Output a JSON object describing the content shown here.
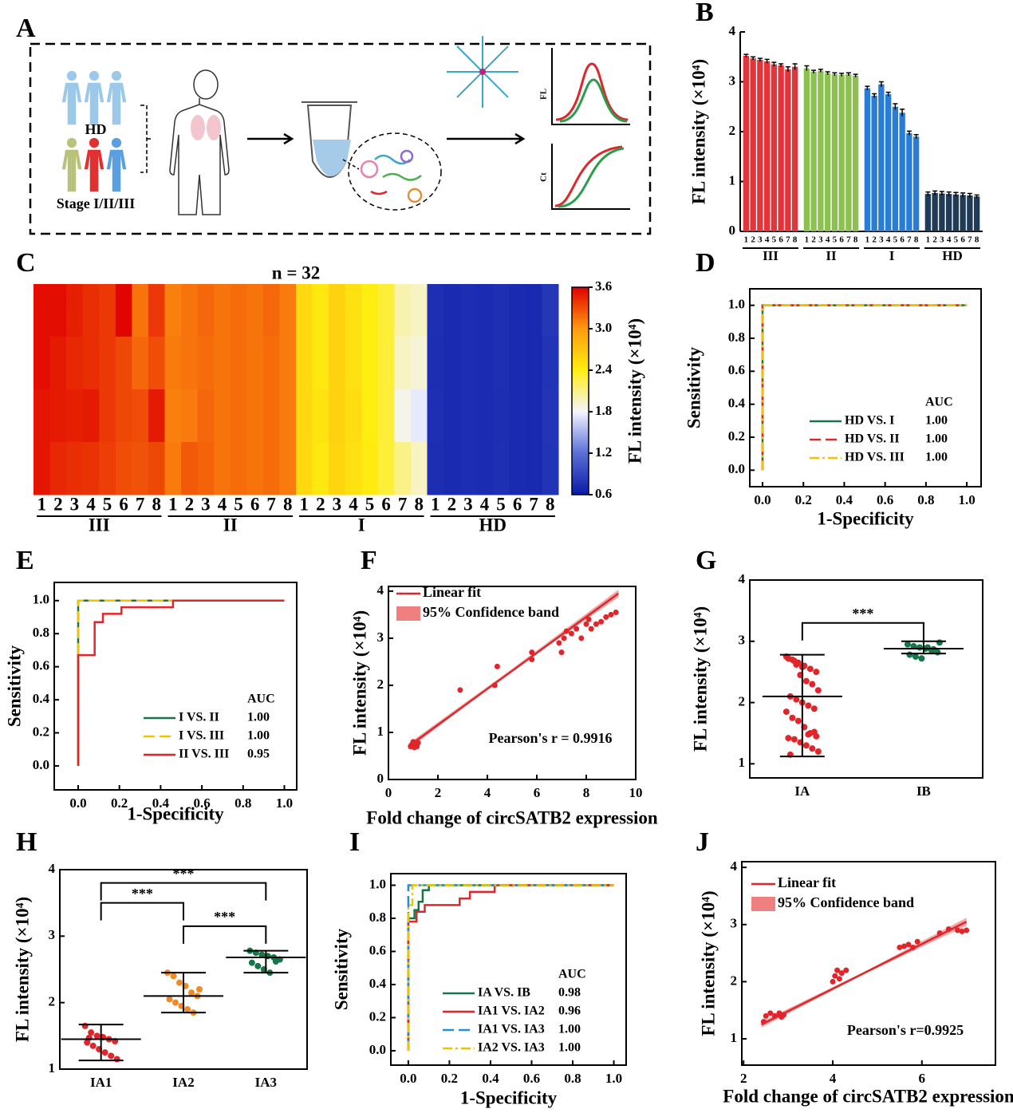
{
  "diagram": {
    "label": "A",
    "healthy": "HD",
    "patients": "Stage I/II/III",
    "fl_axis": "FL",
    "ct_axis": "Ct"
  },
  "chart_data": [
    {
      "label": "B",
      "type": "bar",
      "ylabel": "FL intensity (×10⁴)",
      "ylim": [
        0,
        4
      ],
      "yticks": [
        0,
        1,
        2,
        3,
        4
      ],
      "groups": [
        {
          "name": "III",
          "color": "#e3343a",
          "categories": [
            "1",
            "2",
            "3",
            "4",
            "5",
            "6",
            "7",
            "8"
          ],
          "values": [
            3.52,
            3.47,
            3.44,
            3.41,
            3.35,
            3.33,
            3.25,
            3.3
          ],
          "errors": [
            0.03,
            0.03,
            0.03,
            0.04,
            0.04,
            0.03,
            0.05,
            0.06
          ]
        },
        {
          "name": "II",
          "color": "#8cc152",
          "categories": [
            "1",
            "2",
            "3",
            "4",
            "5",
            "6",
            "7",
            "8"
          ],
          "values": [
            3.27,
            3.2,
            3.22,
            3.17,
            3.15,
            3.14,
            3.15,
            3.12
          ],
          "errors": [
            0.05,
            0.03,
            0.03,
            0.03,
            0.03,
            0.03,
            0.03,
            0.03
          ]
        },
        {
          "name": "I",
          "color": "#2a7dd4",
          "categories": [
            "1",
            "2",
            "3",
            "4",
            "5",
            "6",
            "7",
            "8"
          ],
          "values": [
            2.87,
            2.72,
            2.95,
            2.75,
            2.5,
            2.38,
            1.97,
            1.9
          ],
          "errors": [
            0.04,
            0.04,
            0.05,
            0.04,
            0.06,
            0.07,
            0.04,
            0.04
          ]
        },
        {
          "name": "HD",
          "color": "#1f3b57",
          "categories": [
            "1",
            "2",
            "3",
            "4",
            "5",
            "6",
            "7",
            "8"
          ],
          "values": [
            0.75,
            0.77,
            0.76,
            0.75,
            0.74,
            0.73,
            0.72,
            0.7
          ],
          "errors": [
            0.04,
            0.04,
            0.04,
            0.04,
            0.04,
            0.04,
            0.04,
            0.03
          ]
        }
      ]
    },
    {
      "label": "C",
      "type": "heatmap",
      "title": "n = 32",
      "colorbar_label": "FL intensity (×10⁴)",
      "clim": [
        0.6,
        3.6
      ],
      "cticks": [
        0.6,
        1.2,
        1.8,
        2.4,
        {
          "value": 3,
          "label": "3.0"
        },
        3.6
      ],
      "colors": [
        "#0a1aa8",
        "#5a6fd6",
        "#f4f4ff",
        "#ffee10",
        "#ff9a10",
        "#e00000"
      ],
      "groups": [
        {
          "name": "III",
          "categories": [
            "1",
            "2",
            "3",
            "4",
            "5",
            "6",
            "7",
            "8"
          ]
        },
        {
          "name": "II",
          "categories": [
            "1",
            "2",
            "3",
            "4",
            "5",
            "6",
            "7",
            "8"
          ]
        },
        {
          "name": "I",
          "categories": [
            "1",
            "2",
            "3",
            "4",
            "5",
            "6",
            "7",
            "8"
          ]
        },
        {
          "name": "HD",
          "categories": [
            "1",
            "2",
            "3",
            "4",
            "5",
            "6",
            "7",
            "8"
          ]
        }
      ],
      "z": [
        [
          3.55,
          3.55,
          3.48,
          3.42,
          3.38,
          3.58,
          3.15,
          3.38,
          3.1,
          3.15,
          3.2,
          3.15,
          3.18,
          3.15,
          3.2,
          3.12,
          2.55,
          2.45,
          2.6,
          2.5,
          2.4,
          2.3,
          2.0,
          1.95,
          0.75,
          0.72,
          0.74,
          0.73,
          0.75,
          0.72,
          0.71,
          0.8
        ],
        [
          3.55,
          3.5,
          3.45,
          3.42,
          3.38,
          3.32,
          3.2,
          3.3,
          3.12,
          3.15,
          3.18,
          3.15,
          3.18,
          3.15,
          3.18,
          3.12,
          2.55,
          2.45,
          2.6,
          2.5,
          2.4,
          2.3,
          1.95,
          1.9,
          0.74,
          0.72,
          0.74,
          0.73,
          0.75,
          0.72,
          0.71,
          0.78
        ],
        [
          3.52,
          3.5,
          3.48,
          3.5,
          3.38,
          3.32,
          3.3,
          3.5,
          3.1,
          3.12,
          3.2,
          3.15,
          3.18,
          3.15,
          3.18,
          3.12,
          2.55,
          2.48,
          2.6,
          2.52,
          2.4,
          2.3,
          1.85,
          1.75,
          0.75,
          0.72,
          0.74,
          0.73,
          0.74,
          0.72,
          0.71,
          0.79
        ],
        [
          3.52,
          3.45,
          3.42,
          3.4,
          3.36,
          3.3,
          3.28,
          3.32,
          3.12,
          3.25,
          3.22,
          3.15,
          3.18,
          3.15,
          3.18,
          3.12,
          2.55,
          2.45,
          2.58,
          2.5,
          2.42,
          2.3,
          2.1,
          1.95,
          0.74,
          0.72,
          0.74,
          0.73,
          0.75,
          0.72,
          0.71,
          0.78
        ]
      ]
    },
    {
      "label": "D",
      "type": "line",
      "xlabel": "1-Specificity",
      "ylabel": "Sensitivity",
      "legend_title": "AUC",
      "xlim": [
        -0.0625,
        1.07
      ],
      "ylim": [
        -0.1,
        1.1
      ],
      "xticks": [
        {
          "value": 0,
          "label": "0.0"
        },
        0.2,
        0.4,
        0.6,
        0.8,
        {
          "value": 1,
          "label": "1.0"
        }
      ],
      "yticks": [
        {
          "value": 0,
          "label": "0.0"
        },
        0.2,
        0.4,
        0.6,
        0.8,
        {
          "value": 1,
          "label": "1.0"
        }
      ],
      "series": [
        {
          "name": "HD VS. I",
          "color": "#17754a",
          "linestyle": "solid",
          "x": [
            0,
            0,
            1
          ],
          "values": [
            0,
            1,
            1
          ],
          "auc": "1.00"
        },
        {
          "name": "HD VS. II",
          "color": "#e0262b",
          "linestyle": "dashed",
          "x": [
            0,
            0,
            1
          ],
          "values": [
            0,
            1,
            1
          ],
          "auc": "1.00"
        },
        {
          "name": "HD VS. III",
          "color": "#f2c200",
          "linestyle": "dashdot",
          "x": [
            0,
            0,
            1
          ],
          "values": [
            0,
            1,
            1
          ],
          "auc": "1.00"
        }
      ]
    },
    {
      "label": "E",
      "type": "line",
      "xlabel": "1-Specificity",
      "ylabel": "Sensitivity",
      "legend_title": "AUC",
      "xlim": [
        -0.116,
        1.06
      ],
      "ylim": [
        -0.145,
        1.11
      ],
      "xticks": [
        {
          "value": 0,
          "label": "0.0"
        },
        0.2,
        0.4,
        0.6,
        0.8,
        {
          "value": 1,
          "label": "1.0"
        }
      ],
      "yticks": [
        {
          "value": 0,
          "label": "0.0"
        },
        0.2,
        0.4,
        0.6,
        0.8,
        {
          "value": 1,
          "label": "1.0"
        }
      ],
      "series": [
        {
          "name": "I VS. II",
          "color": "#17754a",
          "linestyle": "solid",
          "x": [
            0,
            0,
            0,
            1
          ],
          "values": [
            0,
            0.67,
            1,
            1
          ],
          "auc": "1.00"
        },
        {
          "name": "I VS. III",
          "color": "#f2c200",
          "linestyle": "dashed",
          "x": [
            0,
            0,
            0,
            1
          ],
          "values": [
            0,
            0.67,
            1,
            1
          ],
          "auc": "1.00"
        },
        {
          "name": "II VS. III",
          "color": "#e0262b",
          "linestyle": "solid",
          "x": [
            0,
            0,
            0.08,
            0.08,
            0.12,
            0.12,
            0.21,
            0.21,
            0.46,
            0.46,
            1
          ],
          "values": [
            0,
            0.67,
            0.67,
            0.87,
            0.87,
            0.92,
            0.92,
            0.96,
            0.96,
            1,
            1
          ],
          "auc": "0.95"
        }
      ]
    },
    {
      "label": "F",
      "type": "scatter",
      "xlabel": "Fold change of circSATB2 expression",
      "ylabel": "FL intensity (×10⁴)",
      "annotation": "Pearson's r = 0.9916",
      "color": "#e0262b",
      "xlim": [
        0,
        10
      ],
      "ylim": [
        0,
        4.1
      ],
      "xticks": [
        0,
        2,
        4,
        6,
        8,
        10
      ],
      "yticks": [
        0,
        1,
        2,
        3,
        4
      ],
      "x": [
        0.9,
        1.0,
        1.1,
        1.05,
        0.95,
        1.15,
        1.2,
        1.0,
        2.9,
        4.3,
        4.4,
        5.8,
        5.8,
        6.9,
        7.0,
        7.1,
        7.2,
        7.4,
        7.6,
        7.8,
        8.0,
        8.1,
        8.2,
        8.4,
        8.6,
        8.8,
        9.0,
        9.2
      ],
      "values": [
        0.7,
        0.72,
        0.75,
        0.68,
        0.74,
        0.7,
        0.78,
        0.8,
        1.9,
        2.0,
        2.4,
        2.55,
        2.7,
        2.9,
        2.7,
        3.0,
        3.15,
        3.1,
        3.2,
        3.0,
        3.3,
        3.4,
        3.2,
        3.3,
        3.35,
        3.45,
        3.5,
        3.55
      ],
      "fit": {
        "name": "Linear fit",
        "x": [
          0.8,
          9.3
        ],
        "values": [
          0.7,
          3.95
        ]
      },
      "band": {
        "name": "95% Confidence band",
        "color": "#f08080",
        "x": [
          0.8,
          5,
          9.3
        ],
        "lower": [
          0.64,
          2.31,
          3.87
        ],
        "upper": [
          0.76,
          2.35,
          4.03
        ]
      }
    },
    {
      "label": "G",
      "type": "strip",
      "ylabel": "FL intensity (×10⁴)",
      "ylim": [
        0.77,
        4
      ],
      "yticks": [
        1,
        2,
        3,
        4
      ],
      "categories": [
        "IA",
        "IB"
      ],
      "colors": [
        "#e0262b",
        "#17754a"
      ],
      "points": [
        [
          2.75,
          2.7,
          2.65,
          2.6,
          2.55,
          2.5,
          2.72,
          2.68,
          2.45,
          2.35,
          2.3,
          2.2,
          2.1,
          2.05,
          2.0,
          1.95,
          1.9,
          1.85,
          1.75,
          1.7,
          1.6,
          1.5,
          1.45,
          1.42,
          1.4,
          1.35,
          1.3,
          1.25,
          1.2,
          1.15,
          2.62,
          2.58,
          1.48,
          1.52
        ],
        [
          2.95,
          2.92,
          2.9,
          2.88,
          2.85,
          2.82,
          2.78,
          2.75,
          2.72,
          2.9,
          2.87,
          2.98
        ]
      ],
      "mean": [
        2.1,
        2.88
      ],
      "whisker_low": [
        1.12,
        2.8
      ],
      "whisker_high": [
        2.78,
        3.0
      ],
      "comparisons": [
        {
          "groups": [
            "IA",
            "IB"
          ],
          "label": "***"
        }
      ]
    },
    {
      "label": "H",
      "type": "strip",
      "ylabel": "FL intensity (×10⁴)",
      "ylim": [
        1,
        4
      ],
      "yticks": [
        1,
        2,
        3,
        4
      ],
      "categories": [
        "IA1",
        "IA2",
        "IA3"
      ],
      "colors": [
        "#e0262b",
        "#f08a24",
        "#17754a"
      ],
      "points": [
        [
          1.65,
          1.55,
          1.5,
          1.48,
          1.45,
          1.42,
          1.4,
          1.35,
          1.3,
          1.25,
          1.2,
          1.15,
          1.47
        ],
        [
          2.45,
          2.4,
          2.3,
          2.25,
          2.15,
          2.1,
          2.05,
          2.0,
          1.95,
          1.9,
          1.85,
          2.2
        ],
        [
          2.78,
          2.75,
          2.72,
          2.7,
          2.68,
          2.65,
          2.6,
          2.55,
          2.5,
          2.45,
          2.62
        ]
      ],
      "mean": [
        1.45,
        2.1,
        2.68
      ],
      "whisker_low": [
        1.13,
        1.85,
        2.45
      ],
      "whisker_high": [
        1.67,
        2.45,
        2.78
      ],
      "comparisons": [
        {
          "groups": [
            "IA1",
            "IA2"
          ],
          "label": "***"
        },
        {
          "groups": [
            "IA2",
            "IA3"
          ],
          "label": "***"
        },
        {
          "groups": [
            "IA1",
            "IA3"
          ],
          "label": "***"
        }
      ]
    },
    {
      "label": "I",
      "type": "line",
      "xlabel": "1-Specificity",
      "ylabel": "Sensitivity",
      "legend_title": "AUC",
      "xlim": [
        -0.085,
        1.06
      ],
      "ylim": [
        -0.087,
        1.07
      ],
      "xticks": [
        {
          "value": 0,
          "label": "0.0"
        },
        0.2,
        0.4,
        0.6,
        0.8,
        {
          "value": 1,
          "label": "1.0"
        }
      ],
      "yticks": [
        {
          "value": 0,
          "label": "0.0"
        },
        0.2,
        0.4,
        0.6,
        0.8,
        {
          "value": 1,
          "label": "1.0"
        }
      ],
      "series": [
        {
          "name": "IA VS. IB",
          "color": "#17754a",
          "linestyle": "solid",
          "x": [
            0,
            0,
            0.03,
            0.03,
            0.05,
            0.05,
            0.07,
            0.07,
            0.1,
            0.1,
            1
          ],
          "values": [
            0,
            0.8,
            0.8,
            0.85,
            0.85,
            0.9,
            0.9,
            0.97,
            0.97,
            1,
            1
          ],
          "auc": "0.98"
        },
        {
          "name": "IA1 VS. IA2",
          "color": "#e0262b",
          "linestyle": "solid",
          "x": [
            0,
            0,
            0.04,
            0.04,
            0.08,
            0.08,
            0.25,
            0.25,
            0.3,
            0.3,
            0.42,
            0.42,
            1
          ],
          "values": [
            0,
            0.78,
            0.78,
            0.84,
            0.84,
            0.88,
            0.88,
            0.92,
            0.92,
            0.96,
            0.96,
            1,
            1
          ],
          "auc": "0.96"
        },
        {
          "name": "IA1 VS. IA3",
          "color": "#1f8fe0",
          "linestyle": "dashed",
          "x": [
            0,
            0,
            1
          ],
          "values": [
            0,
            1,
            1
          ],
          "auc": "1.00"
        },
        {
          "name": "IA2 VS. IA3",
          "color": "#f2c200",
          "linestyle": "dashdot",
          "x": [
            0,
            0,
            0.02,
            0.02,
            1
          ],
          "values": [
            0,
            0.88,
            0.88,
            1,
            1
          ],
          "auc": "1.00"
        }
      ]
    },
    {
      "label": "J",
      "type": "scatter",
      "xlabel": "Fold change of circSATB2 expression",
      "ylabel": "FL intensity (×10⁴)",
      "annotation": "Pearson's r=0.9925",
      "color": "#e0262b",
      "xlim": [
        1.96,
        7.65
      ],
      "ylim": [
        0.54,
        4.1
      ],
      "xticks": [
        2,
        4,
        6
      ],
      "yticks": [
        1,
        2,
        3,
        4
      ],
      "x": [
        2.45,
        2.5,
        2.6,
        2.7,
        2.8,
        2.9,
        2.85,
        4.0,
        4.05,
        4.1,
        4.2,
        4.3,
        4.15,
        5.5,
        5.6,
        5.7,
        5.8,
        5.9,
        6.4,
        6.6,
        6.8,
        6.9,
        7.0
      ],
      "values": [
        1.3,
        1.4,
        1.45,
        1.4,
        1.45,
        1.42,
        1.38,
        2.0,
        2.1,
        2.2,
        2.15,
        2.2,
        2.05,
        2.6,
        2.62,
        2.65,
        2.6,
        2.7,
        2.85,
        2.92,
        2.9,
        2.88,
        2.9
      ],
      "fit": {
        "name": "Linear fit",
        "x": [
          2.4,
          7.0
        ],
        "values": [
          1.25,
          3.05
        ]
      },
      "band": {
        "name": "95% Confidence band",
        "color": "#f08080",
        "x": [
          2.4,
          4.7,
          7.0
        ],
        "lower": [
          1.2,
          2.13,
          2.98
        ],
        "upper": [
          1.3,
          2.17,
          3.12
        ]
      }
    }
  ]
}
